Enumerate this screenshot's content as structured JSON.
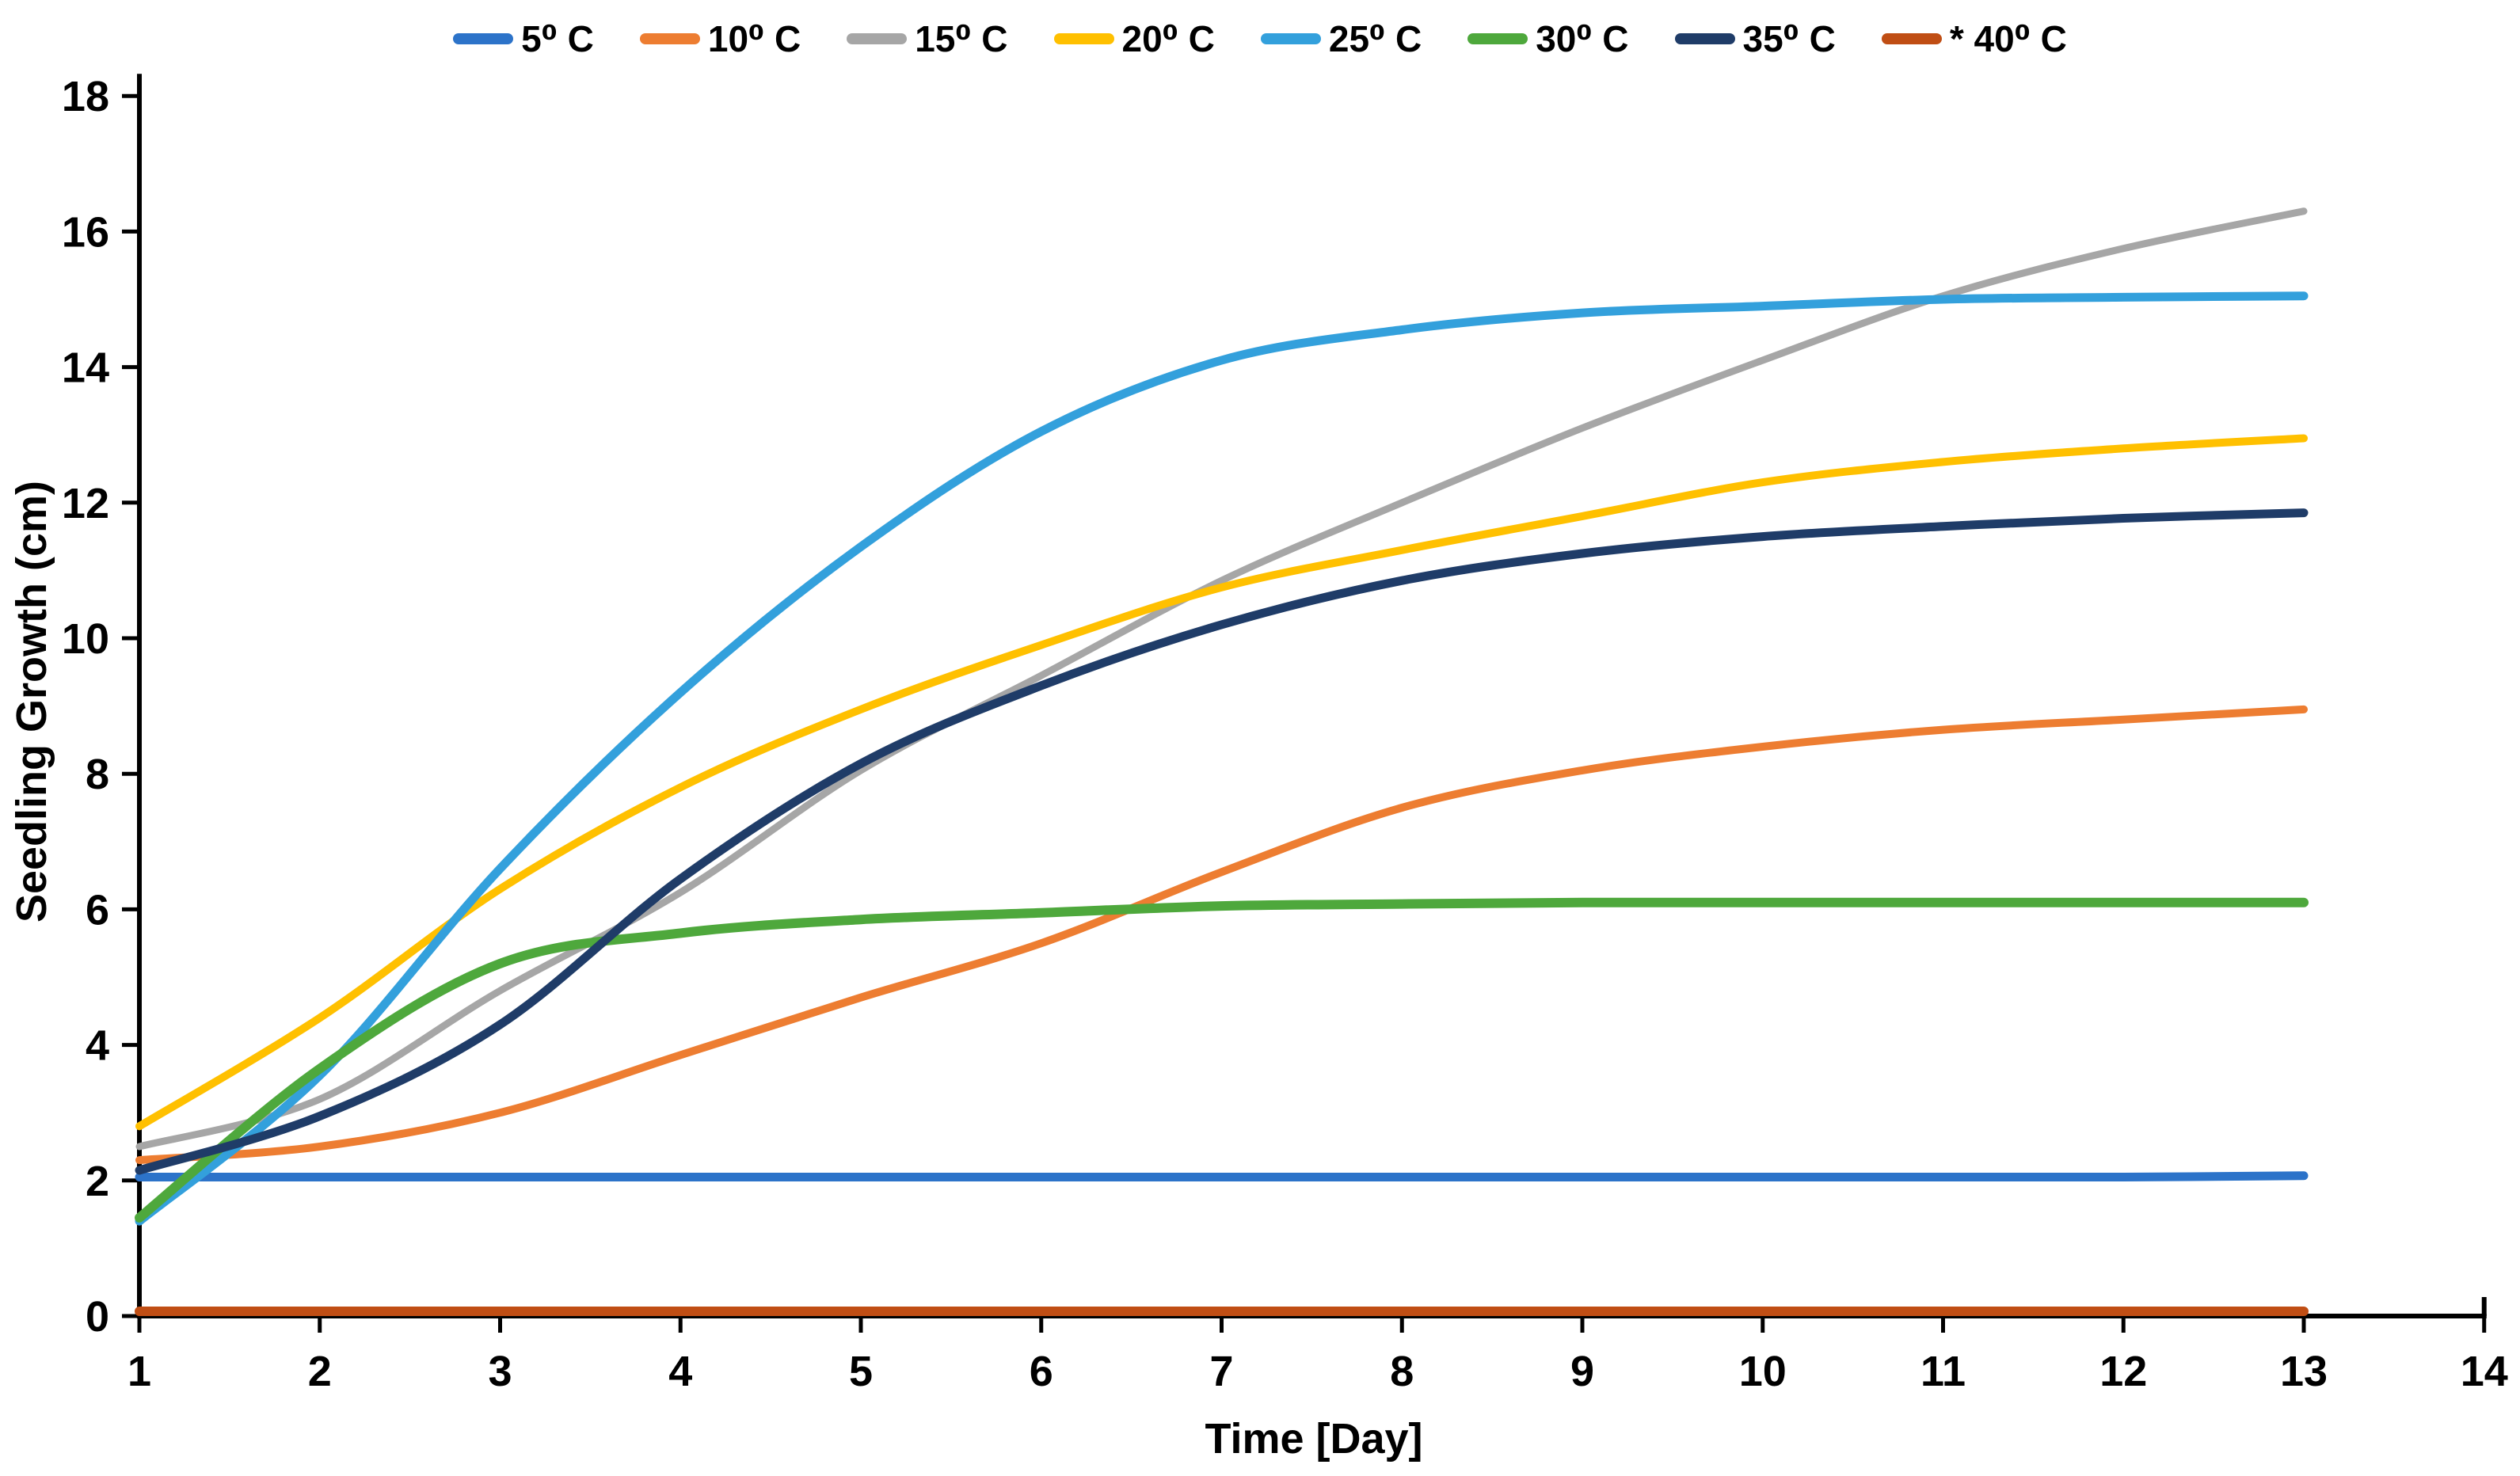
{
  "chart_data": {
    "type": "line",
    "title": "",
    "xlabel": "Time [Day]",
    "ylabel": "Seedling Growth (cm)",
    "xlim": [
      1,
      14
    ],
    "ylim": [
      0,
      18
    ],
    "xticks": [
      1,
      2,
      3,
      4,
      5,
      6,
      7,
      8,
      9,
      10,
      11,
      12,
      13,
      14
    ],
    "yticks": [
      0,
      2,
      4,
      6,
      8,
      10,
      12,
      14,
      16,
      18
    ],
    "grid": false,
    "legend_position": "top-center",
    "axis_color": "#000000",
    "text_color": "#000000",
    "x": [
      1,
      2,
      3,
      4,
      5,
      6,
      7,
      8,
      9,
      10,
      11,
      12,
      13
    ],
    "series": [
      {
        "name": "5C",
        "label": "5⁰ C",
        "color": "#2C73C9",
        "values": [
          2.05,
          2.05,
          2.05,
          2.05,
          2.05,
          2.05,
          2.05,
          2.05,
          2.05,
          2.05,
          2.05,
          2.05,
          2.07
        ]
      },
      {
        "name": "10C",
        "label": "10⁰ C",
        "color": "#ED7D31",
        "values": [
          2.3,
          2.5,
          3.0,
          3.85,
          4.7,
          5.5,
          6.55,
          7.5,
          8.05,
          8.4,
          8.65,
          8.8,
          8.95
        ]
      },
      {
        "name": "15C",
        "label": "15⁰ C",
        "color": "#A6A6A6",
        "values": [
          2.5,
          3.2,
          4.8,
          6.25,
          8.05,
          9.45,
          10.85,
          12.0,
          13.1,
          14.1,
          15.05,
          15.75,
          16.3
        ]
      },
      {
        "name": "20C",
        "label": "20⁰ C",
        "color": "#FFC000",
        "values": [
          2.8,
          4.4,
          6.3,
          7.8,
          8.95,
          9.9,
          10.75,
          11.3,
          11.8,
          12.3,
          12.6,
          12.8,
          12.95
        ]
      },
      {
        "name": "25C",
        "label": "25⁰ C",
        "color": "#33A0DC",
        "values": [
          1.4,
          3.55,
          6.6,
          9.2,
          11.35,
          13.05,
          14.1,
          14.55,
          14.8,
          14.9,
          15.0,
          15.03,
          15.05
        ]
      },
      {
        "name": "30C",
        "label": "30⁰ C",
        "color": "#4EA83C",
        "values": [
          1.45,
          3.65,
          5.2,
          5.65,
          5.85,
          5.95,
          6.05,
          6.08,
          6.1,
          6.1,
          6.1,
          6.1,
          6.1
        ]
      },
      {
        "name": "35C",
        "label": "35⁰ C",
        "color": "#1F3C68",
        "values": [
          2.15,
          2.95,
          4.3,
          6.45,
          8.15,
          9.3,
          10.2,
          10.85,
          11.25,
          11.5,
          11.65,
          11.77,
          11.85
        ]
      },
      {
        "name": "40C",
        "label": "* 40⁰ C",
        "color": "#C04E14",
        "values": [
          0.07,
          0.07,
          0.07,
          0.07,
          0.07,
          0.07,
          0.07,
          0.07,
          0.07,
          0.07,
          0.07,
          0.07,
          0.07
        ]
      }
    ]
  }
}
